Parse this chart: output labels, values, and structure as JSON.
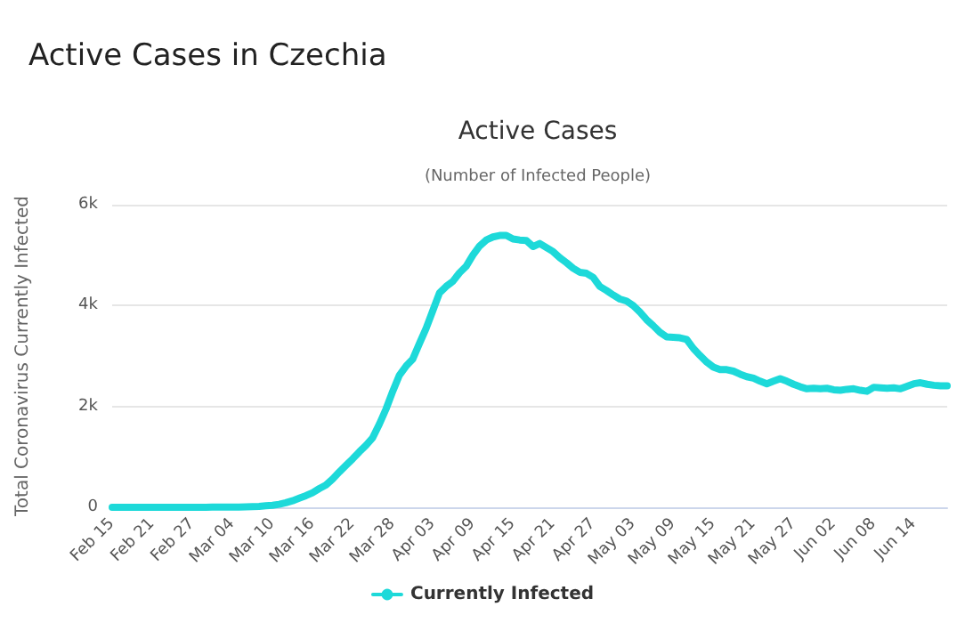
{
  "chart_data": {
    "type": "line",
    "title": "Active Cases",
    "subtitle": "(Number of Infected People)",
    "annotations": [
      "Active Cases in Czechia"
    ],
    "ylabel": "Total Coronavirus Currently Infected",
    "categories": [
      "Feb 15",
      null,
      null,
      null,
      null,
      null,
      "Feb 21",
      null,
      null,
      null,
      null,
      null,
      "Feb 27",
      null,
      null,
      null,
      null,
      null,
      "Mar 04",
      null,
      null,
      null,
      null,
      null,
      "Mar 10",
      null,
      null,
      null,
      null,
      null,
      "Mar 16",
      null,
      null,
      null,
      null,
      null,
      "Mar 22",
      null,
      null,
      null,
      null,
      null,
      "Mar 28",
      null,
      null,
      null,
      null,
      null,
      "Apr 03",
      null,
      null,
      null,
      null,
      null,
      "Apr 09",
      null,
      null,
      null,
      null,
      null,
      "Apr 15",
      null,
      null,
      null,
      null,
      null,
      "Apr 21",
      null,
      null,
      null,
      null,
      null,
      "Apr 27",
      null,
      null,
      null,
      null,
      null,
      "May 03",
      null,
      null,
      null,
      null,
      null,
      "May 09",
      null,
      null,
      null,
      null,
      null,
      "May 15",
      null,
      null,
      null,
      null,
      null,
      "May 21",
      null,
      null,
      null,
      null,
      null,
      "May 27",
      null,
      null,
      null,
      null,
      null,
      "Jun 02",
      null,
      null,
      null,
      null,
      null,
      "Jun 08",
      null,
      null,
      null,
      null,
      null,
      "Jun 14",
      null,
      null,
      null,
      null,
      null
    ],
    "series": [
      {
        "name": "Currently Infected",
        "color": "#1dd9d9",
        "values": [
          0,
          0,
          0,
          0,
          0,
          0,
          0,
          0,
          0,
          0,
          0,
          0,
          0,
          0,
          0,
          3,
          3,
          3,
          5,
          5,
          8,
          12,
          18,
          30,
          40,
          60,
          90,
          130,
          180,
          230,
          290,
          370,
          440,
          560,
          700,
          830,
          960,
          1100,
          1230,
          1380,
          1650,
          1950,
          2300,
          2620,
          2800,
          2940,
          3250,
          3550,
          3900,
          4250,
          4380,
          4480,
          4650,
          4780,
          5000,
          5180,
          5300,
          5360,
          5390,
          5390,
          5320,
          5300,
          5290,
          5170,
          5230,
          5150,
          5070,
          4950,
          4850,
          4740,
          4660,
          4640,
          4560,
          4380,
          4300,
          4210,
          4130,
          4090,
          4000,
          3870,
          3720,
          3600,
          3470,
          3380,
          3370,
          3360,
          3330,
          3150,
          3010,
          2880,
          2780,
          2730,
          2730,
          2700,
          2640,
          2590,
          2560,
          2500,
          2450,
          2500,
          2550,
          2500,
          2440,
          2390,
          2350,
          2360,
          2350,
          2360,
          2330,
          2320,
          2340,
          2350,
          2320,
          2300,
          2380,
          2370,
          2360,
          2370,
          2350,
          2400,
          2450,
          2470,
          2440,
          2420,
          2410,
          2410
        ]
      }
    ],
    "ylim": [
      0,
      6000
    ],
    "yticks": [
      {
        "value": 0,
        "label": "0"
      },
      {
        "value": 2000,
        "label": "2k"
      },
      {
        "value": 4000,
        "label": "4k"
      },
      {
        "value": 6000,
        "label": "6k"
      }
    ],
    "grid": "y",
    "legend": "bottom",
    "marker": "none",
    "line_style": "solid"
  }
}
